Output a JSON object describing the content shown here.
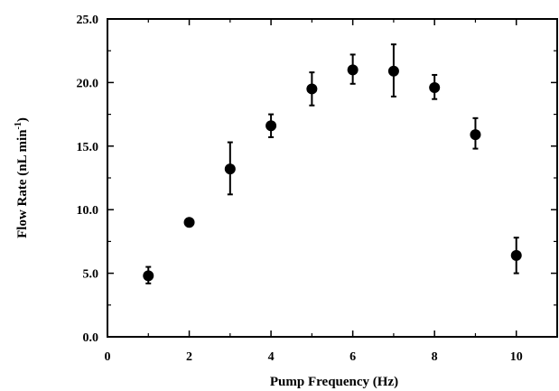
{
  "chart_data": {
    "type": "scatter",
    "title": "",
    "xlabel": "Pump Frequency (Hz)",
    "ylabel": {
      "main": "Flow Rate (nL min",
      "superscript": "-1",
      "close": ")"
    },
    "xlim": [
      0,
      11
    ],
    "ylim": [
      0,
      25
    ],
    "xticks": [
      0,
      2,
      4,
      6,
      8,
      10
    ],
    "xtick_labels": [
      "0",
      "2",
      "4",
      "6",
      "8",
      "10"
    ],
    "yticks": [
      0,
      5,
      10,
      15,
      20,
      25
    ],
    "ytick_labels": [
      "0.0",
      "5.0",
      "10.0",
      "15.0",
      "20.0",
      "25.0"
    ],
    "grid": false,
    "legend": "none",
    "marker_color": "#000000",
    "series": [
      {
        "points": [
          {
            "x": 1,
            "y": 4.8,
            "err_low": 0.6,
            "err_high": 0.7
          },
          {
            "x": 2,
            "y": 9.0,
            "err_low": 0.1,
            "err_high": 0.1
          },
          {
            "x": 3,
            "y": 13.2,
            "err_low": 2.0,
            "err_high": 2.1
          },
          {
            "x": 4,
            "y": 16.6,
            "err_low": 0.9,
            "err_high": 0.9
          },
          {
            "x": 5,
            "y": 19.5,
            "err_low": 1.3,
            "err_high": 1.3
          },
          {
            "x": 6,
            "y": 21.0,
            "err_low": 1.1,
            "err_high": 1.2
          },
          {
            "x": 7,
            "y": 20.9,
            "err_low": 2.0,
            "err_high": 2.1
          },
          {
            "x": 8,
            "y": 19.6,
            "err_low": 0.9,
            "err_high": 1.0
          },
          {
            "x": 9,
            "y": 15.9,
            "err_low": 1.1,
            "err_high": 1.3
          },
          {
            "x": 10,
            "y": 6.4,
            "err_low": 1.4,
            "err_high": 1.4
          }
        ]
      }
    ]
  }
}
